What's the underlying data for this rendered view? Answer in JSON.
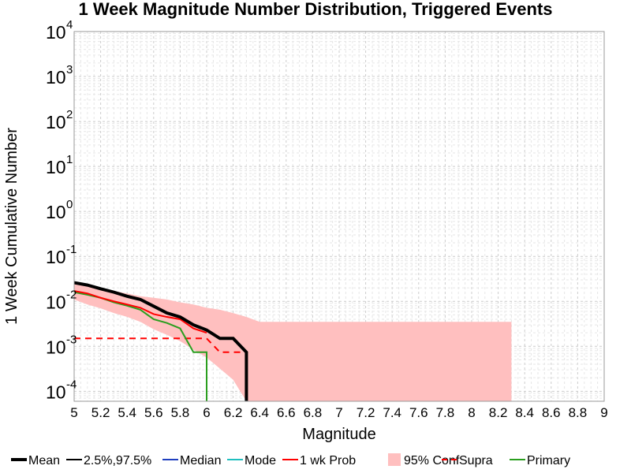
{
  "chart_data": {
    "type": "line",
    "title": "1 Week Magnitude Number Distribution, Triggered Events",
    "xlabel": "Magnitude",
    "ylabel": "1 Week Cumulative Number",
    "xlim": [
      5,
      9
    ],
    "ylim": [
      6e-05,
      10000
    ],
    "y_scale": "log",
    "grid": true,
    "x_ticks": [
      "5",
      "5.2",
      "5.4",
      "5.6",
      "5.8",
      "6",
      "6.2",
      "6.4",
      "6.6",
      "6.8",
      "7",
      "7.2",
      "7.4",
      "7.6",
      "7.8",
      "8",
      "8.2",
      "8.4",
      "8.6",
      "8.8",
      "9"
    ],
    "y_ticks": [
      {
        "value": 0.0001,
        "base": "10",
        "exp": "-4"
      },
      {
        "value": 0.001,
        "base": "10",
        "exp": "-3"
      },
      {
        "value": 0.01,
        "base": "10",
        "exp": "-2"
      },
      {
        "value": 0.1,
        "base": "10",
        "exp": "-1"
      },
      {
        "value": 1,
        "base": "10",
        "exp": "0"
      },
      {
        "value": 10,
        "base": "10",
        "exp": "1"
      },
      {
        "value": 100,
        "base": "10",
        "exp": "2"
      },
      {
        "value": 1000,
        "base": "10",
        "exp": "3"
      },
      {
        "value": 10000,
        "base": "10",
        "exp": "4"
      }
    ],
    "legend_position": "bottom",
    "legend": [
      "Mean",
      "2.5%,97.5%",
      "Median",
      "Mode",
      "1 wk Prob",
      "95% Conf",
      "Supra",
      "Primary"
    ],
    "series": [
      {
        "name": "Mean",
        "color": "#000000",
        "style": "solid-thick",
        "x": [
          5.0,
          5.1,
          5.2,
          5.3,
          5.4,
          5.5,
          5.6,
          5.7,
          5.8,
          5.9,
          6.0,
          6.1,
          6.2,
          6.3,
          6.3
        ],
        "y": [
          0.026,
          0.023,
          0.019,
          0.016,
          0.013,
          0.011,
          0.0078,
          0.0055,
          0.0045,
          0.003,
          0.0023,
          0.0015,
          0.0015,
          0.00074,
          1e-05
        ]
      },
      {
        "name": "1 wk Prob",
        "color": "#ff0000",
        "style": "solid",
        "x": [
          5.0,
          5.1,
          5.2,
          5.3,
          5.4,
          5.5,
          5.6,
          5.7,
          5.8,
          5.9,
          6.0
        ],
        "y": [
          0.017,
          0.015,
          0.012,
          0.01,
          0.0085,
          0.0072,
          0.0052,
          0.0045,
          0.004,
          0.0025,
          0.002
        ]
      },
      {
        "name": "Primary",
        "color": "#2a9e1e",
        "style": "solid",
        "x": [
          5.0,
          5.1,
          5.2,
          5.3,
          5.4,
          5.5,
          5.6,
          5.7,
          5.8,
          5.9,
          5.99,
          6.0,
          6.0
        ],
        "y": [
          0.016,
          0.014,
          0.012,
          0.0095,
          0.008,
          0.0065,
          0.004,
          0.0033,
          0.0025,
          0.00074,
          0.00074,
          0.00074,
          1e-05
        ]
      },
      {
        "name": "Supra",
        "color": "#ff0000",
        "style": "dashed",
        "x": [
          5.0,
          5.99,
          6.0,
          6.1,
          6.3
        ],
        "y": [
          0.0015,
          0.0015,
          0.0015,
          0.00074,
          0.00074
        ]
      }
    ],
    "band": {
      "name": "95% Conf",
      "color": "#ffbfbf",
      "x": [
        5.0,
        5.1,
        5.2,
        5.3,
        5.4,
        5.5,
        5.6,
        5.7,
        5.8,
        5.9,
        6.0,
        6.1,
        6.2,
        6.3,
        6.4,
        8.3,
        8.3
      ],
      "upper": [
        0.028,
        0.024,
        0.02,
        0.017,
        0.015,
        0.013,
        0.012,
        0.011,
        0.0095,
        0.0085,
        0.0072,
        0.0065,
        0.0055,
        0.0045,
        0.0035,
        0.0035,
        0.0035
      ],
      "lower": [
        0.011,
        0.0085,
        0.007,
        0.0055,
        0.0045,
        0.0035,
        0.0024,
        0.0018,
        0.0013,
        0.00085,
        0.00056,
        0.00032,
        0.00018,
        5e-05,
        5e-05,
        5e-05,
        5e-05
      ]
    }
  }
}
